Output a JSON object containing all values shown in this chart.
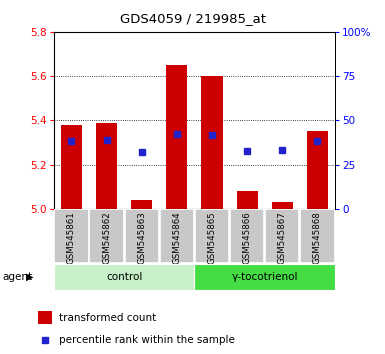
{
  "title": "GDS4059 / 219985_at",
  "samples": [
    "GSM545861",
    "GSM545862",
    "GSM545863",
    "GSM545864",
    "GSM545865",
    "GSM545866",
    "GSM545867",
    "GSM545868"
  ],
  "bar_tops": [
    5.38,
    5.39,
    5.04,
    5.65,
    5.6,
    5.08,
    5.03,
    5.35
  ],
  "bar_bottom": 5.0,
  "percentile_values": [
    5.305,
    5.31,
    5.255,
    5.34,
    5.335,
    5.26,
    5.265,
    5.305
  ],
  "ylim": [
    5.0,
    5.8
  ],
  "yticks_left": [
    5.0,
    5.2,
    5.4,
    5.6,
    5.8
  ],
  "yticks_right": [
    0,
    25,
    50,
    75,
    100
  ],
  "bar_color": "#cc0000",
  "dot_color": "#2222cc",
  "bg_color": "#ffffff",
  "label_bg": "#c8c8c8",
  "control_bg": "#c8f0c8",
  "treatment_bg": "#44dd44",
  "control_label": "control",
  "treatment_label": "γ-tocotrienol",
  "agent_label": "agent",
  "legend_tc": "transformed count",
  "legend_pr": "percentile rank within the sample",
  "figsize": [
    3.85,
    3.54
  ],
  "dpi": 100
}
